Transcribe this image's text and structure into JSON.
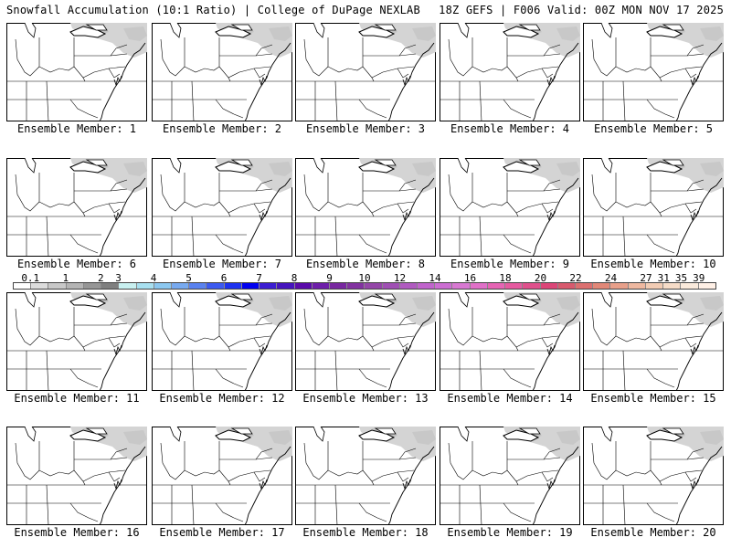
{
  "header": {
    "title": "Snowfall Accumulation (10:1 Ratio) | College of DuPage NEXLAB",
    "run_info": "18Z GEFS | F006 Valid: 00Z MON NOV 17 2025"
  },
  "colorbar": {
    "tick_labels": [
      "0.1",
      "1",
      "2",
      "3",
      "4",
      "5",
      "6",
      "7",
      "8",
      "9",
      "10",
      "12",
      "14",
      "16",
      "18",
      "20",
      "22",
      "24",
      "27",
      "31",
      "35",
      "39"
    ],
    "colors": [
      "#ffffff",
      "#dcdcdc",
      "#c8c8c8",
      "#b4b4b4",
      "#969696",
      "#7f7f7f",
      "#c8f0f0",
      "#a8e0f0",
      "#8cc8f0",
      "#78aaf0",
      "#5a82f0",
      "#3c5af0",
      "#1e32f0",
      "#0000f0",
      "#3c1ed2",
      "#4614be",
      "#5a0aaa",
      "#6e1eaa",
      "#7828a0",
      "#8232a0",
      "#9446a8",
      "#a050b4",
      "#b05ac0",
      "#c064cc",
      "#cc6ed2",
      "#d878d2",
      "#e070c8",
      "#e664b4",
      "#e65aa0",
      "#e0508c",
      "#dc4678",
      "#d85a6e",
      "#dc7070",
      "#e28878",
      "#e8a08a",
      "#eeb8a0",
      "#f2ccb4",
      "#f6dcc8",
      "#faeadc",
      "#fff0e6"
    ]
  },
  "panels": [
    {
      "label": "Ensemble Member: 1"
    },
    {
      "label": "Ensemble Member: 2"
    },
    {
      "label": "Ensemble Member: 3"
    },
    {
      "label": "Ensemble Member: 4"
    },
    {
      "label": "Ensemble Member: 5"
    },
    {
      "label": "Ensemble Member: 6"
    },
    {
      "label": "Ensemble Member: 7"
    },
    {
      "label": "Ensemble Member: 8"
    },
    {
      "label": "Ensemble Member: 9"
    },
    {
      "label": "Ensemble Member: 10"
    },
    {
      "label": "Ensemble Member: 11"
    },
    {
      "label": "Ensemble Member: 12"
    },
    {
      "label": "Ensemble Member: 13"
    },
    {
      "label": "Ensemble Member: 14"
    },
    {
      "label": "Ensemble Member: 15"
    },
    {
      "label": "Ensemble Member: 16"
    },
    {
      "label": "Ensemble Member: 17"
    },
    {
      "label": "Ensemble Member: 18"
    },
    {
      "label": "Ensemble Member: 19"
    },
    {
      "label": "Ensemble Member: 20"
    }
  ]
}
